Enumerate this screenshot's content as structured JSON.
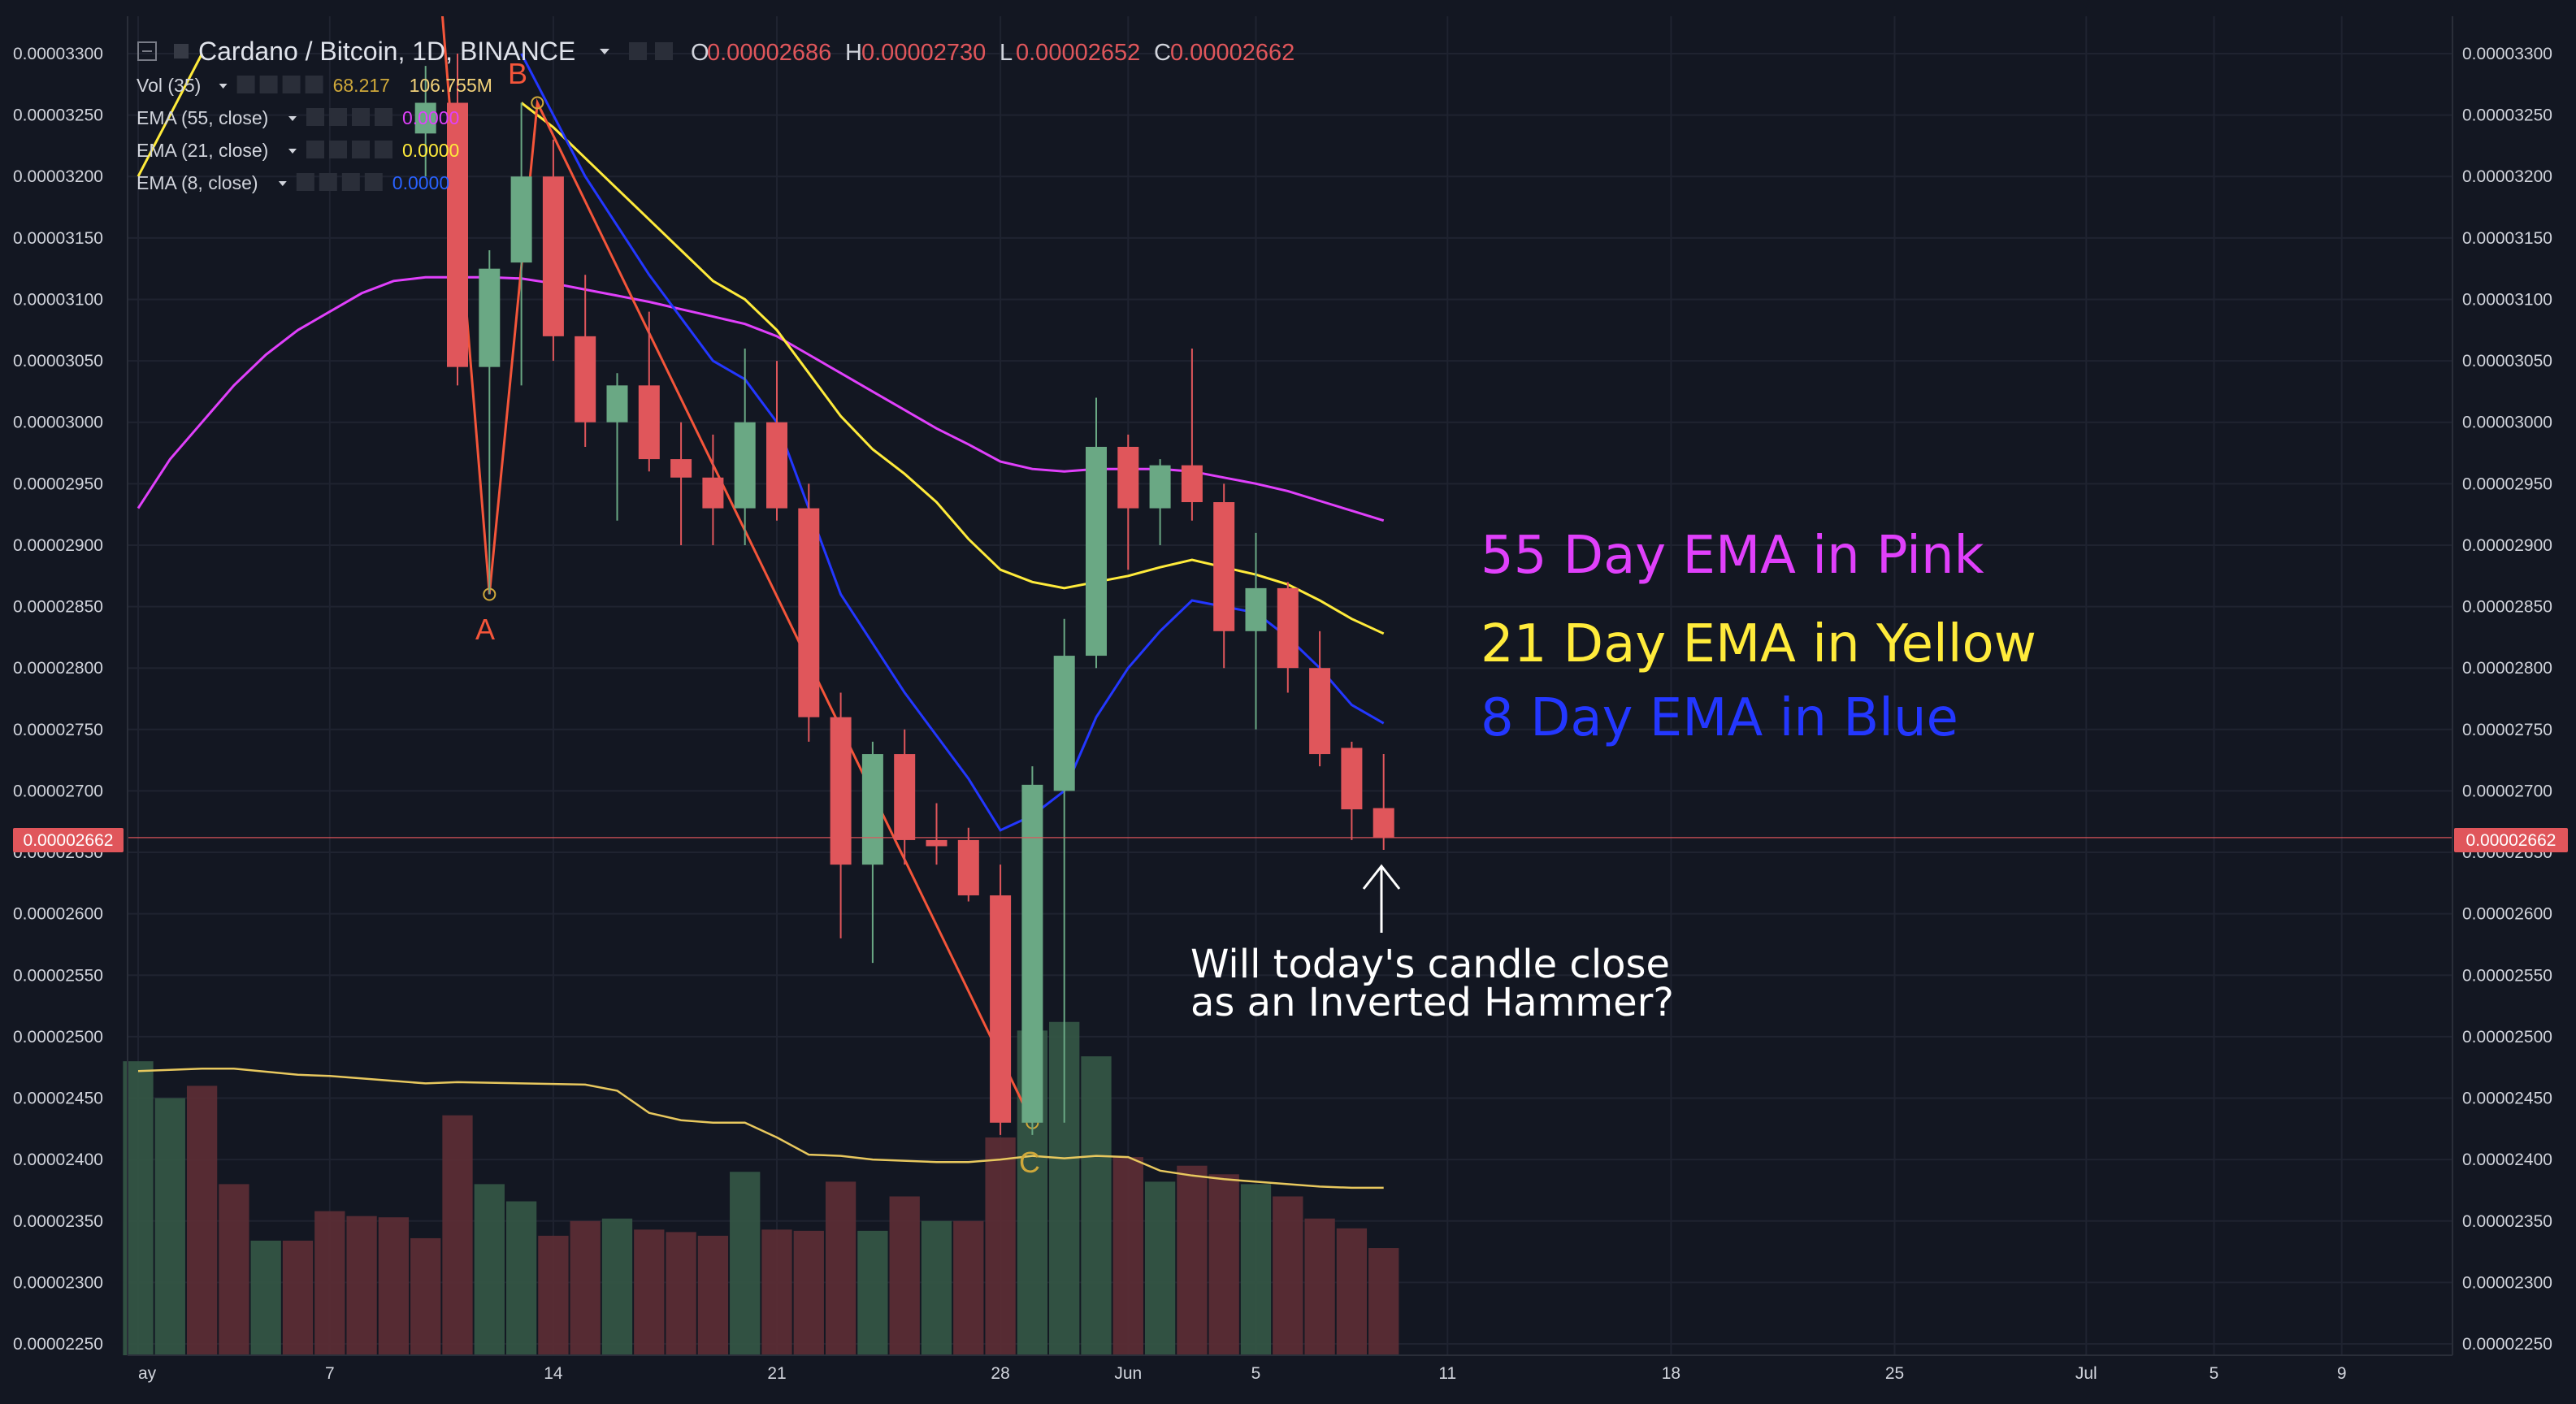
{
  "header": {
    "title": "Cardano / Bitcoin, 1D, BINANCE",
    "ohlc": [
      {
        "key": "O",
        "value": "0.00002686"
      },
      {
        "key": "H",
        "value": "0.00002730"
      },
      {
        "key": "L",
        "value": "0.00002652"
      },
      {
        "key": "C",
        "value": "0.00002662"
      }
    ]
  },
  "indicators": [
    {
      "label": "Vol (35)",
      "value": "68.217",
      "value2": "106.755M",
      "color": "#cfa83a"
    },
    {
      "label": "EMA (55, close)",
      "value": "0.0000",
      "color": "#e040fb"
    },
    {
      "label": "EMA (21, close)",
      "value": "0.0000",
      "color": "#ffeb3b"
    },
    {
      "label": "EMA (8, close)",
      "value": "0.0000",
      "color": "#2962ff"
    }
  ],
  "colors": {
    "background": "#131722",
    "up": "#6aa884",
    "down": "#e0565b",
    "ema55": "#e040fb",
    "ema21": "#ffeb3b",
    "ema8": "#2337ff",
    "volMA": "#e8c85e",
    "wave": "#f4553a"
  },
  "annotations": {
    "ema55": "55 Day EMA in Pink",
    "ema21": "21 Day EMA in Yellow",
    "ema8": "8 Day EMA in Blue",
    "note_line1": "Will today's candle close",
    "note_line2": "as an Inverted Hammer?",
    "pointA": "A",
    "pointB": "B",
    "pointC": "C"
  },
  "price_tag": "0.00002662",
  "chart_data": {
    "type": "candlestick",
    "ylim": [
      2.24e-05,
      3.31e-05
    ],
    "yticks": [
      "0.00003300",
      "0.00003250",
      "0.00003200",
      "0.00003150",
      "0.00003100",
      "0.00003050",
      "0.00003000",
      "0.00002950",
      "0.00002900",
      "0.00002850",
      "0.00002800",
      "0.00002750",
      "0.00002700",
      "0.00002650",
      "0.00002600",
      "0.00002550",
      "0.00002500",
      "0.00002450",
      "0.00002400",
      "0.00002350",
      "0.00002300",
      "0.00002250"
    ],
    "xticks": [
      {
        "i": 0,
        "label": "ay"
      },
      {
        "i": 6,
        "label": "7"
      },
      {
        "i": 13,
        "label": "14"
      },
      {
        "i": 20,
        "label": "21"
      },
      {
        "i": 27,
        "label": "28"
      },
      {
        "i": 31,
        "label": "Jun"
      },
      {
        "i": 35,
        "label": "5"
      },
      {
        "i": 41,
        "label": "11"
      },
      {
        "i": 48,
        "label": "18"
      },
      {
        "i": 55,
        "label": "25"
      },
      {
        "i": 61,
        "label": "Jul"
      },
      {
        "i": 65,
        "label": "5"
      },
      {
        "i": 69,
        "label": "9"
      }
    ],
    "candles": [
      [
        9,
        3.235e-05,
        3.29e-05,
        3.2e-05,
        3.26e-05
      ],
      [
        10,
        3.26e-05,
        3.3e-05,
        3.03e-05,
        3.045e-05
      ],
      [
        11,
        3.045e-05,
        3.14e-05,
        2.86e-05,
        3.125e-05
      ],
      [
        12,
        3.13e-05,
        3.26e-05,
        3.03e-05,
        3.2e-05
      ],
      [
        13,
        3.2e-05,
        3.23e-05,
        3.05e-05,
        3.07e-05
      ],
      [
        14,
        3.07e-05,
        3.12e-05,
        2.98e-05,
        3e-05
      ],
      [
        15,
        3e-05,
        3.04e-05,
        2.92e-05,
        3.03e-05
      ],
      [
        16,
        3.03e-05,
        3.09e-05,
        2.96e-05,
        2.97e-05
      ],
      [
        17,
        2.97e-05,
        3e-05,
        2.9e-05,
        2.955e-05
      ],
      [
        18,
        2.955e-05,
        2.99e-05,
        2.9e-05,
        2.93e-05
      ],
      [
        19,
        2.93e-05,
        3.06e-05,
        2.9e-05,
        3e-05
      ],
      [
        20,
        3e-05,
        3.05e-05,
        2.92e-05,
        2.93e-05
      ],
      [
        21,
        2.93e-05,
        2.95e-05,
        2.74e-05,
        2.76e-05
      ],
      [
        22,
        2.76e-05,
        2.78e-05,
        2.58e-05,
        2.64e-05
      ],
      [
        23,
        2.64e-05,
        2.74e-05,
        2.56e-05,
        2.73e-05
      ],
      [
        24,
        2.73e-05,
        2.75e-05,
        2.64e-05,
        2.66e-05
      ],
      [
        25,
        2.66e-05,
        2.69e-05,
        2.64e-05,
        2.655e-05
      ],
      [
        26,
        2.66e-05,
        2.67e-05,
        2.61e-05,
        2.615e-05
      ],
      [
        27,
        2.615e-05,
        2.64e-05,
        2.42e-05,
        2.43e-05
      ],
      [
        28,
        2.43e-05,
        2.72e-05,
        2.42e-05,
        2.705e-05
      ],
      [
        29,
        2.7e-05,
        2.84e-05,
        2.43e-05,
        2.81e-05
      ],
      [
        30,
        2.81e-05,
        3.02e-05,
        2.8e-05,
        2.98e-05
      ],
      [
        31,
        2.98e-05,
        2.99e-05,
        2.88e-05,
        2.93e-05
      ],
      [
        32,
        2.93e-05,
        2.97e-05,
        2.9e-05,
        2.965e-05
      ],
      [
        33,
        2.965e-05,
        3.06e-05,
        2.92e-05,
        2.935e-05
      ],
      [
        34,
        2.935e-05,
        2.95e-05,
        2.8e-05,
        2.83e-05
      ],
      [
        35,
        2.83e-05,
        2.91e-05,
        2.75e-05,
        2.865e-05
      ],
      [
        36,
        2.865e-05,
        2.87e-05,
        2.78e-05,
        2.8e-05
      ],
      [
        37,
        2.8e-05,
        2.83e-05,
        2.72e-05,
        2.73e-05
      ],
      [
        38,
        2.735e-05,
        2.74e-05,
        2.66e-05,
        2.685e-05
      ],
      [
        39,
        2.686e-05,
        2.73e-05,
        2.652e-05,
        2.662e-05
      ]
    ],
    "ema55": [
      [
        0,
        2.93e-05
      ],
      [
        1,
        2.97e-05
      ],
      [
        2,
        3e-05
      ],
      [
        3,
        3.03e-05
      ],
      [
        4,
        3.055e-05
      ],
      [
        5,
        3.075e-05
      ],
      [
        6,
        3.09e-05
      ],
      [
        7,
        3.105e-05
      ],
      [
        8,
        3.115e-05
      ],
      [
        9,
        3.118e-05
      ],
      [
        10,
        3.118e-05
      ],
      [
        11,
        3.118e-05
      ],
      [
        12,
        3.117e-05
      ],
      [
        13,
        3.113e-05
      ],
      [
        14,
        3.108e-05
      ],
      [
        15,
        3.103e-05
      ],
      [
        16,
        3.098e-05
      ],
      [
        17,
        3.092e-05
      ],
      [
        18,
        3.086e-05
      ],
      [
        19,
        3.08e-05
      ],
      [
        20,
        3.07e-05
      ],
      [
        21,
        3.055e-05
      ],
      [
        22,
        3.04e-05
      ],
      [
        23,
        3.025e-05
      ],
      [
        24,
        3.01e-05
      ],
      [
        25,
        2.995e-05
      ],
      [
        26,
        2.982e-05
      ],
      [
        27,
        2.968e-05
      ],
      [
        28,
        2.962e-05
      ],
      [
        29,
        2.96e-05
      ],
      [
        30,
        2.962e-05
      ],
      [
        31,
        2.962e-05
      ],
      [
        32,
        2.962e-05
      ],
      [
        33,
        2.96e-05
      ],
      [
        34,
        2.955e-05
      ],
      [
        35,
        2.95e-05
      ],
      [
        36,
        2.944e-05
      ],
      [
        37,
        2.936e-05
      ],
      [
        38,
        2.928e-05
      ],
      [
        39,
        2.92e-05
      ]
    ],
    "ema21": [
      [
        0,
        3.2e-05
      ],
      [
        1,
        3.25e-05
      ],
      [
        2,
        3.3e-05
      ],
      [
        12,
        3.26e-05
      ],
      [
        13,
        3.24e-05
      ],
      [
        14,
        3.215e-05
      ],
      [
        15,
        3.19e-05
      ],
      [
        16,
        3.165e-05
      ],
      [
        17,
        3.14e-05
      ],
      [
        18,
        3.115e-05
      ],
      [
        19,
        3.1e-05
      ],
      [
        20,
        3.075e-05
      ],
      [
        21,
        3.04e-05
      ],
      [
        22,
        3.005e-05
      ],
      [
        23,
        2.978e-05
      ],
      [
        24,
        2.958e-05
      ],
      [
        25,
        2.935e-05
      ],
      [
        26,
        2.905e-05
      ],
      [
        27,
        2.88e-05
      ],
      [
        28,
        2.87e-05
      ],
      [
        29,
        2.865e-05
      ],
      [
        30,
        2.87e-05
      ],
      [
        31,
        2.875e-05
      ],
      [
        32,
        2.882e-05
      ],
      [
        33,
        2.888e-05
      ],
      [
        34,
        2.882e-05
      ],
      [
        35,
        2.876e-05
      ],
      [
        36,
        2.868e-05
      ],
      [
        37,
        2.855e-05
      ],
      [
        38,
        2.84e-05
      ],
      [
        39,
        2.828e-05
      ]
    ],
    "ema8": [
      [
        12,
        3.3e-05
      ],
      [
        13,
        3.25e-05
      ],
      [
        14,
        3.2e-05
      ],
      [
        15,
        3.16e-05
      ],
      [
        16,
        3.12e-05
      ],
      [
        17,
        3.085e-05
      ],
      [
        18,
        3.05e-05
      ],
      [
        19,
        3.035e-05
      ],
      [
        20,
        3e-05
      ],
      [
        21,
        2.93e-05
      ],
      [
        22,
        2.86e-05
      ],
      [
        23,
        2.82e-05
      ],
      [
        24,
        2.78e-05
      ],
      [
        25,
        2.745e-05
      ],
      [
        26,
        2.71e-05
      ],
      [
        27,
        2.668e-05
      ],
      [
        28,
        2.68e-05
      ],
      [
        29,
        2.7e-05
      ],
      [
        30,
        2.76e-05
      ],
      [
        31,
        2.8e-05
      ],
      [
        32,
        2.83e-05
      ],
      [
        33,
        2.855e-05
      ],
      [
        34,
        2.85e-05
      ],
      [
        35,
        2.845e-05
      ],
      [
        36,
        2.825e-05
      ],
      [
        37,
        2.8e-05
      ],
      [
        38,
        2.77e-05
      ],
      [
        39,
        2.755e-05
      ]
    ],
    "wave": [
      [
        9.5,
        3.34e-05
      ],
      [
        11,
        2.86e-05
      ],
      [
        12.5,
        3.26e-05
      ],
      [
        28,
        2.43e-05
      ]
    ],
    "volume": [
      [
        0,
        2.48e-05,
        "up"
      ],
      [
        1,
        2.45e-05,
        "up"
      ],
      [
        2,
        2.46e-05,
        "down"
      ],
      [
        3,
        2.38e-05,
        "down"
      ],
      [
        4,
        2.334e-05,
        "up"
      ],
      [
        5,
        2.334e-05,
        "down"
      ],
      [
        6,
        2.358e-05,
        "down"
      ],
      [
        7,
        2.354e-05,
        "down"
      ],
      [
        8,
        2.353e-05,
        "down"
      ],
      [
        9,
        2.336e-05,
        "down"
      ],
      [
        10,
        2.436e-05,
        "down"
      ],
      [
        11,
        2.38e-05,
        "up"
      ],
      [
        12,
        2.366e-05,
        "up"
      ],
      [
        13,
        2.338e-05,
        "down"
      ],
      [
        14,
        2.35e-05,
        "down"
      ],
      [
        15,
        2.352e-05,
        "up"
      ],
      [
        16,
        2.343e-05,
        "down"
      ],
      [
        17,
        2.341e-05,
        "down"
      ],
      [
        18,
        2.338e-05,
        "down"
      ],
      [
        19,
        2.39e-05,
        "up"
      ],
      [
        20,
        2.343e-05,
        "down"
      ],
      [
        21,
        2.342e-05,
        "down"
      ],
      [
        22,
        2.382e-05,
        "down"
      ],
      [
        23,
        2.342e-05,
        "up"
      ],
      [
        24,
        2.37e-05,
        "down"
      ],
      [
        25,
        2.35e-05,
        "up"
      ],
      [
        26,
        2.35e-05,
        "down"
      ],
      [
        27,
        2.418e-05,
        "down"
      ],
      [
        28,
        2.505e-05,
        "up"
      ],
      [
        29,
        2.512e-05,
        "up"
      ],
      [
        30,
        2.484e-05,
        "up"
      ],
      [
        31,
        2.402e-05,
        "down"
      ],
      [
        32,
        2.382e-05,
        "up"
      ],
      [
        33,
        2.395e-05,
        "down"
      ],
      [
        34,
        2.388e-05,
        "down"
      ],
      [
        35,
        2.38e-05,
        "up"
      ],
      [
        36,
        2.37e-05,
        "down"
      ],
      [
        37,
        2.352e-05,
        "down"
      ],
      [
        38,
        2.344e-05,
        "down"
      ],
      [
        39,
        2.328e-05,
        "down"
      ]
    ],
    "volMA": [
      [
        0,
        2.472e-05
      ],
      [
        2,
        2.474e-05
      ],
      [
        3,
        2.474e-05
      ],
      [
        5,
        2.469e-05
      ],
      [
        6,
        2.468e-05
      ],
      [
        9,
        2.462e-05
      ],
      [
        10,
        2.463e-05
      ],
      [
        14,
        2.461e-05
      ],
      [
        15,
        2.456e-05
      ],
      [
        16,
        2.438e-05
      ],
      [
        17,
        2.432e-05
      ],
      [
        18,
        2.43e-05
      ],
      [
        19,
        2.43e-05
      ],
      [
        20,
        2.418e-05
      ],
      [
        21,
        2.404e-05
      ],
      [
        22,
        2.403e-05
      ],
      [
        23,
        2.4e-05
      ],
      [
        25,
        2.398e-05
      ],
      [
        26,
        2.398e-05
      ],
      [
        27,
        2.4e-05
      ],
      [
        28,
        2.403e-05
      ],
      [
        29,
        2.401e-05
      ],
      [
        30,
        2.403e-05
      ],
      [
        31,
        2.402e-05
      ],
      [
        32,
        2.391e-05
      ],
      [
        33,
        2.387e-05
      ],
      [
        34,
        2.384e-05
      ],
      [
        35,
        2.382e-05
      ],
      [
        36,
        2.38e-05
      ],
      [
        37,
        2.378e-05
      ],
      [
        38,
        2.377e-05
      ],
      [
        39,
        2.377e-05
      ]
    ]
  }
}
